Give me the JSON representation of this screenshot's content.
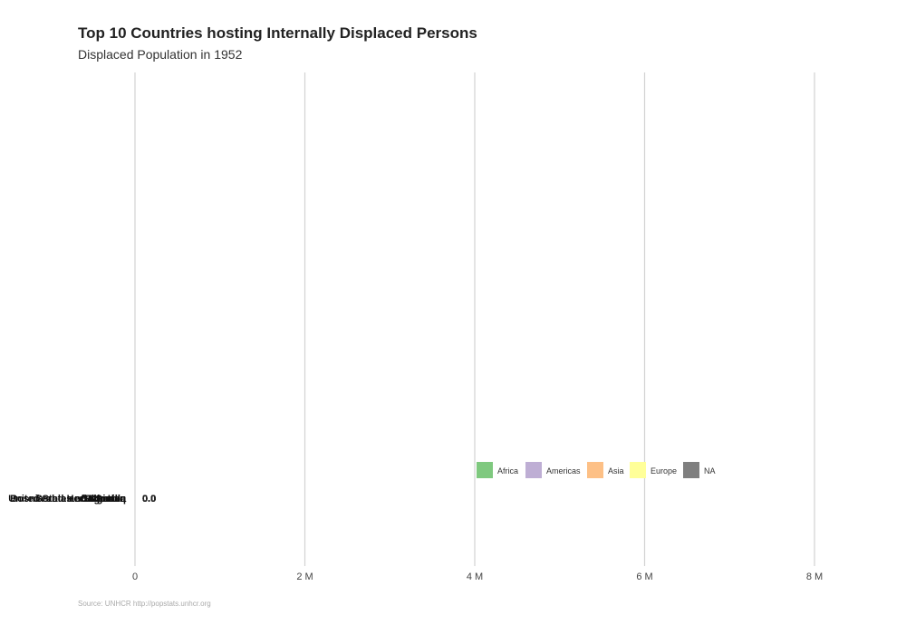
{
  "chart_data": {
    "type": "bar",
    "orientation": "horizontal",
    "title": "Top 10 Countries hosting Internally Displaced Persons",
    "subtitle": "Displaced Population in 1952",
    "xlabel": "",
    "ylabel": "",
    "xlim": [
      0,
      8000000
    ],
    "xticks": [
      0,
      2000000,
      4000000,
      6000000,
      8000000
    ],
    "xtick_labels": [
      "0",
      "2 M",
      "4 M",
      "6 M",
      "8 M"
    ],
    "grid": true,
    "legend": {
      "placement": "center-right",
      "items": [
        {
          "name": "Africa",
          "color": "#7fc97f"
        },
        {
          "name": "Americas",
          "color": "#beaed4"
        },
        {
          "name": "Asia",
          "color": "#fdc086"
        },
        {
          "name": "Europe",
          "color": "#ffff99"
        },
        {
          "name": "NA",
          "color": "#7f7f7f"
        }
      ]
    },
    "bars": [
      {
        "label": "United States of America",
        "value": 0,
        "value_label": "0.0"
      },
      {
        "label": "Pakistan",
        "value": 0,
        "value_label": "0.0"
      },
      {
        "label": "Sri Lanka",
        "value": 0,
        "value_label": "0.0"
      },
      {
        "label": "Colombia",
        "value": 0,
        "value_label": "0.0"
      },
      {
        "label": "Serbia and Kosovo",
        "value": 0,
        "value_label": "0.0"
      },
      {
        "label": "Sudan",
        "value": 0,
        "value_label": "0.0"
      },
      {
        "label": "Iraq",
        "value": 0,
        "value_label": "0.0"
      },
      {
        "label": "Somalia",
        "value": 0,
        "value_label": "0.0"
      },
      {
        "label": "Uganda",
        "value": 0,
        "value_label": "0.0"
      },
      {
        "label": "Bosnia and Herzegovina",
        "value": 0,
        "value_label": "0.0"
      }
    ],
    "source": "Source: UNHCR http://popstats.unhcr.org"
  }
}
